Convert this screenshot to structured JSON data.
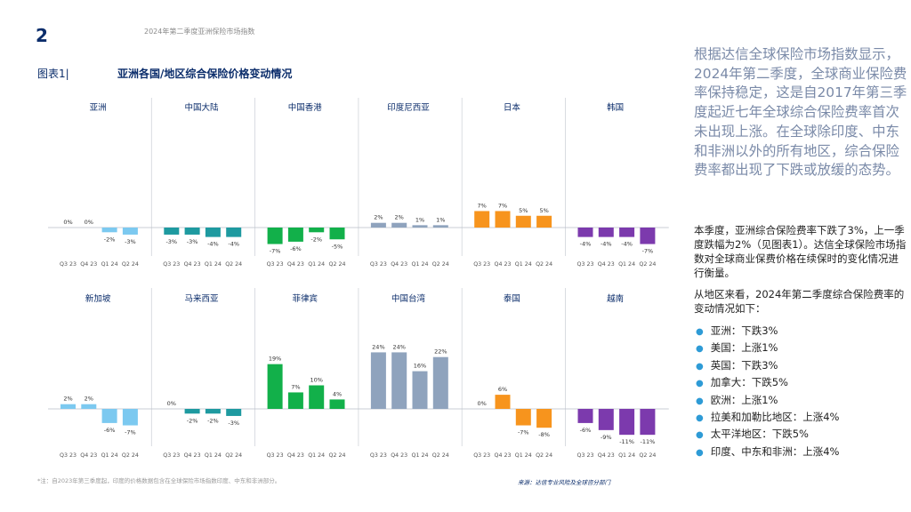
{
  "header": {
    "page_number": "2",
    "title": "2024年第二季度亚洲保险市场指数"
  },
  "figure": {
    "label": "图表1|",
    "title": "亚洲各国/地区综合保险价格变动情况"
  },
  "intro_text": "根据达信全球保险市场指数显示，2024年第二季度，全球商业保险费率保持稳定，这是自2017年第三季度起近七年全球综合保险费率首次未出现上涨。在全球除印度、中东和非洲以外的所有地区，综合保险费率都出现了下跌或放缓的态势。",
  "body_text": "本季度，亚洲综合保险费率下跌了3%，上一季度跌幅为2%（见图表1）。达信全球保险市场指数对全球商业保费价格在续保时的变化情况进行衡量。",
  "region_intro": "从地区来看，2024年第二季度综合保险费率的变动情况如下：",
  "bullets": [
    "亚洲：下跌3%",
    "美国：上涨1%",
    "英国：下跌3%",
    "加拿大：下跌5%",
    "欧洲：上涨1%",
    "拉美和加勒比地区：上涨4%",
    "太平洋地区：下跌5%",
    "印度、中东和非洲：上涨4%"
  ],
  "footnote": "*注：自2023年第三季度起，印度的价格数据包含在全球保险市场指数印度、中东和非洲部分。",
  "source": "来源：达信专业风险及全球咨分部门",
  "chart_data": {
    "type": "bar",
    "title": "亚洲各国/地区综合保险价格变动情况",
    "categories": [
      "Q3 23",
      "Q4 23",
      "Q1 24",
      "Q2 24"
    ],
    "unit": "%",
    "panels": [
      {
        "name": "亚洲",
        "color": "#7cc9f0",
        "values": [
          0,
          0,
          -2,
          -3
        ],
        "labels": [
          "0%",
          "0%",
          "-2%",
          "-3%"
        ]
      },
      {
        "name": "中国大陆",
        "color": "#1e9aa0",
        "values": [
          -3,
          -3,
          -4,
          -4
        ],
        "labels": [
          "-3%",
          "-3%",
          "-4%",
          "-4%"
        ]
      },
      {
        "name": "中国香港",
        "color": "#12b04a",
        "values": [
          -7,
          -6,
          -2,
          -5
        ],
        "labels": [
          "-7%",
          "-6%",
          "-2%",
          "-5%"
        ]
      },
      {
        "name": "印度尼西亚",
        "color": "#8fa3bd",
        "values": [
          2,
          2,
          1,
          1
        ],
        "labels": [
          "2%",
          "2%",
          "1%",
          "1%"
        ]
      },
      {
        "name": "日本",
        "color": "#f7941d",
        "values": [
          7,
          7,
          5,
          5
        ],
        "labels": [
          "7%",
          "7%",
          "5%",
          "5%"
        ]
      },
      {
        "name": "韩国",
        "color": "#7c3aad",
        "values": [
          -4,
          -4,
          -4,
          -7
        ],
        "labels": [
          "-4%",
          "-4%",
          "-4%",
          "-7%"
        ]
      },
      {
        "name": "新加坡",
        "color": "#7cc9f0",
        "values": [
          2,
          2,
          -6,
          -7
        ],
        "labels": [
          "2%",
          "2%",
          "-6%",
          "-7%"
        ]
      },
      {
        "name": "马来西亚",
        "color": "#1e9aa0",
        "values": [
          0,
          -2,
          -2,
          -3
        ],
        "labels": [
          "0%",
          "-2%",
          "-2%",
          "-3%"
        ]
      },
      {
        "name": "菲律宾",
        "color": "#12b04a",
        "values": [
          19,
          7,
          10,
          4
        ],
        "labels": [
          "19%",
          "7%",
          "10%",
          "4%"
        ]
      },
      {
        "name": "中国台湾",
        "color": "#8fa3bd",
        "values": [
          24,
          24,
          16,
          22
        ],
        "labels": [
          "24%",
          "24%",
          "16%",
          "22%"
        ]
      },
      {
        "name": "泰国",
        "color": "#f7941d",
        "values": [
          0,
          6,
          -7,
          -8
        ],
        "labels": [
          "0%",
          "6%",
          "-7%",
          "-8%"
        ]
      },
      {
        "name": "越南",
        "color": "#7c3aad",
        "values": [
          -6,
          -9,
          -11,
          -11
        ],
        "labels": [
          "-6%",
          "-9%",
          "-11%",
          "-11%"
        ]
      }
    ],
    "xlabel": "",
    "ylabel": ""
  }
}
